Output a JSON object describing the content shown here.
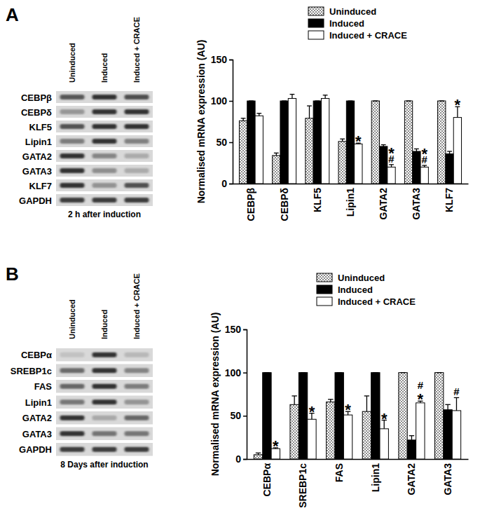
{
  "chart_data": [
    {
      "type": "bar",
      "panel_label": "A",
      "y_label": "Normalised mRNA expression (AU)",
      "categories": [
        "CEBPβ",
        "CEBPδ",
        "KLF5",
        "Lipin1",
        "GATA2",
        "GATA3",
        "KLF7"
      ],
      "series": [
        {
          "name": "Uninduced",
          "color": "#8c8c8c",
          "values": [
            76,
            34,
            79,
            51,
            100,
            100,
            100
          ],
          "errors": [
            3,
            3,
            15,
            3,
            0,
            0,
            0
          ]
        },
        {
          "name": "Induced",
          "color": "#000000",
          "values": [
            100,
            100,
            100,
            100,
            45,
            39,
            36
          ],
          "errors": [
            0,
            0,
            0,
            0,
            2,
            3,
            3
          ]
        },
        {
          "name": "Induced + CRACE",
          "color": "#ffffff",
          "values": [
            82,
            103,
            103,
            48,
            20,
            20,
            80
          ],
          "errors": [
            3,
            5,
            4,
            1,
            3,
            2,
            13
          ]
        }
      ],
      "ylim": [
        0,
        150
      ],
      "yticks": [
        0,
        50,
        100,
        150
      ],
      "legend": "upper right",
      "annotations": [
        {
          "category": "Lipin1",
          "series": "Induced + CRACE",
          "text": [
            "*"
          ]
        },
        {
          "category": "GATA2",
          "series": "Induced + CRACE",
          "text": [
            "*",
            "#"
          ]
        },
        {
          "category": "GATA3",
          "series": "Induced + CRACE",
          "text": [
            "*",
            "#"
          ]
        },
        {
          "category": "KLF7",
          "series": "Induced + CRACE",
          "text": [
            "*"
          ]
        }
      ],
      "gel": {
        "lanes": [
          "Uninduced",
          "Induced",
          "Induced + CRACE"
        ],
        "rows": [
          "CEBPβ",
          "CEBPδ",
          "KLF5",
          "Lipin1",
          "GATA2",
          "GATA3",
          "KLF7",
          "GAPDH"
        ],
        "caption": "2 h after induction"
      }
    },
    {
      "type": "bar",
      "panel_label": "B",
      "y_label": "Normalised mRNA expression (AU)",
      "categories": [
        "CEBPα",
        "SREBP1c",
        "FAS",
        "Lipin1",
        "GATA2",
        "GATA3"
      ],
      "series": [
        {
          "name": "Uninduced",
          "color": "#8c8c8c",
          "values": [
            5,
            63,
            66,
            55,
            100,
            100
          ],
          "errors": [
            2,
            10,
            3,
            18,
            0,
            0
          ]
        },
        {
          "name": "Induced",
          "color": "#000000",
          "values": [
            100,
            100,
            100,
            100,
            22,
            57
          ],
          "errors": [
            0,
            0,
            0,
            0,
            5,
            6
          ]
        },
        {
          "name": "Induced + CRACE",
          "color": "#ffffff",
          "values": [
            12,
            46,
            51,
            35,
            65,
            56
          ],
          "errors": [
            1,
            7,
            4,
            10,
            2,
            15
          ]
        }
      ],
      "ylim": [
        0,
        150
      ],
      "yticks": [
        0,
        50,
        100,
        150
      ],
      "legend": "upper right",
      "annotations": [
        {
          "category": "CEBPα",
          "series": "Induced + CRACE",
          "text": [
            "*"
          ]
        },
        {
          "category": "SREBP1c",
          "series": "Induced + CRACE",
          "text": [
            "*"
          ]
        },
        {
          "category": "FAS",
          "series": "Induced + CRACE",
          "text": [
            "*"
          ]
        },
        {
          "category": "Lipin1",
          "series": "Induced + CRACE",
          "text": [
            "*"
          ]
        },
        {
          "category": "GATA2",
          "series": "Induced + CRACE",
          "text": [
            "#",
            "*"
          ]
        },
        {
          "category": "GATA3",
          "series": "Induced + CRACE",
          "text": [
            "#"
          ]
        }
      ],
      "gel": {
        "lanes": [
          "Uninduced",
          "Induced",
          "Induced + CRACE"
        ],
        "rows": [
          "CEBPα",
          "SREBP1c",
          "FAS",
          "Lipin1",
          "GATA2",
          "GATA3",
          "GAPDH"
        ],
        "caption": "8 Days after induction"
      }
    }
  ]
}
